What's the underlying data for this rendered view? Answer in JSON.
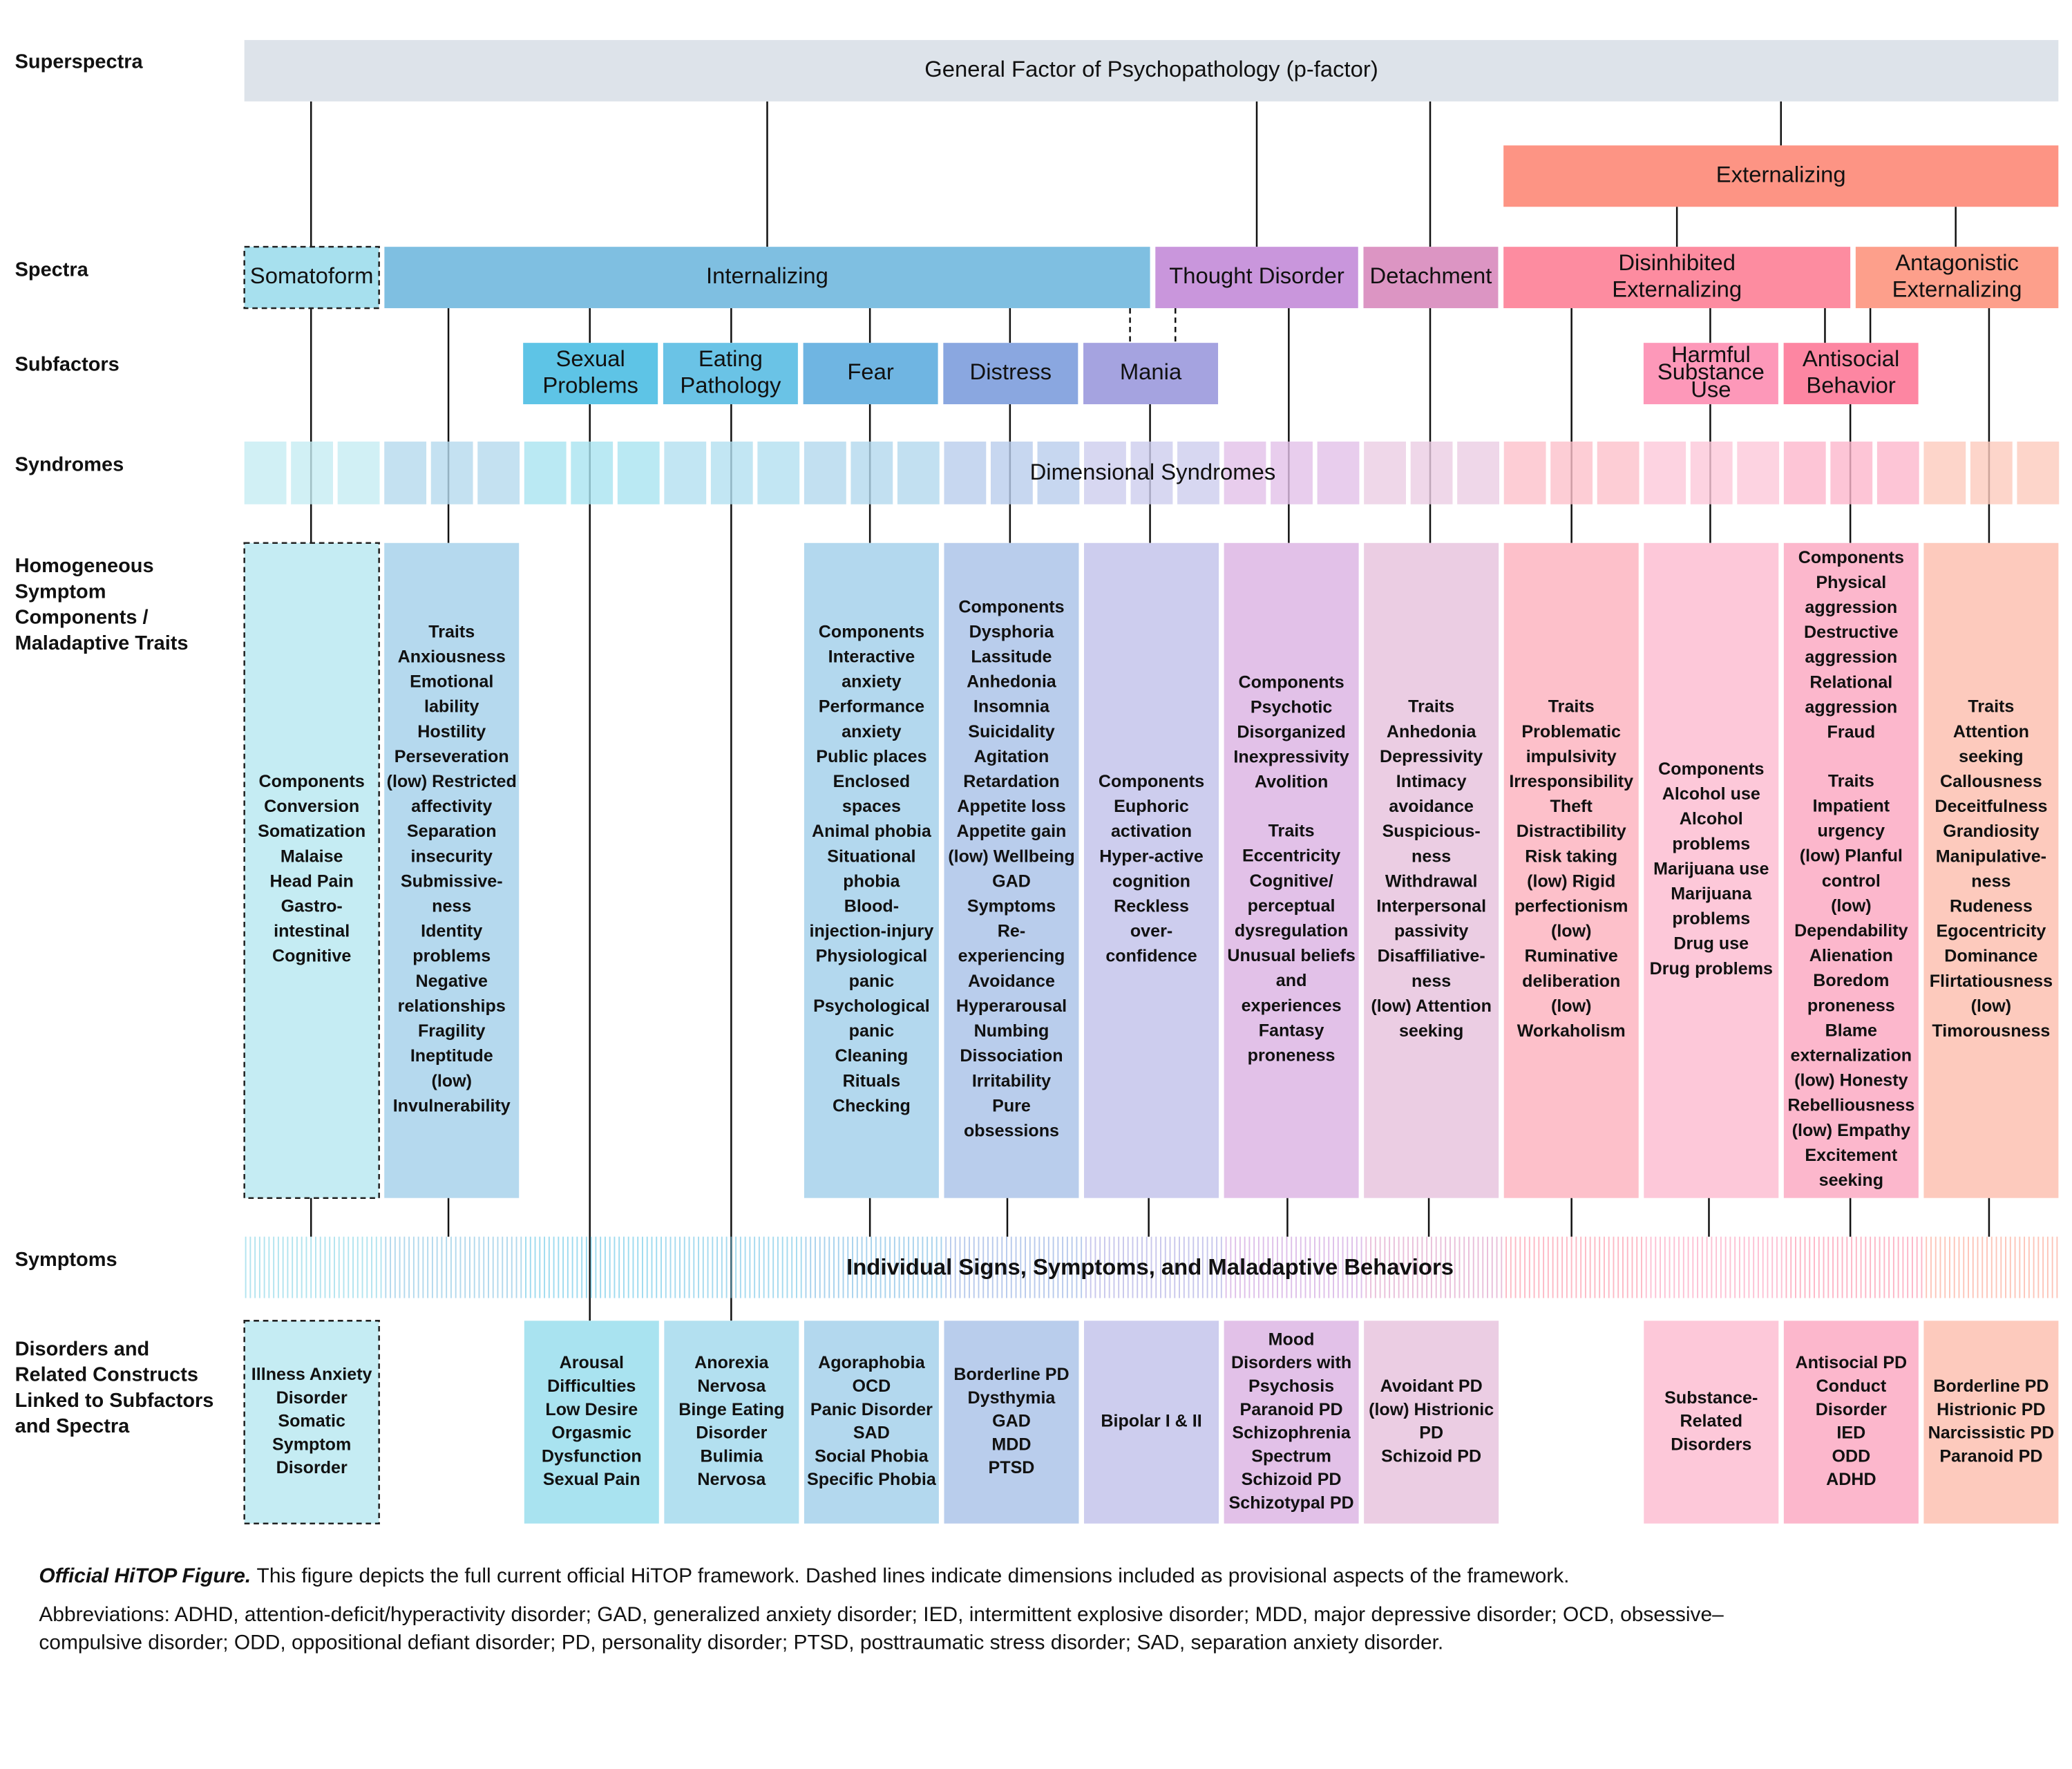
{
  "row_labels": [
    [
      "Superspectra"
    ],
    [
      "Spectra"
    ],
    [
      "Subfactors"
    ],
    [
      "Syndromes"
    ],
    [
      "Homogeneous",
      "Symptom",
      "Components /",
      "Maladaptive Traits"
    ],
    [
      "Symptoms"
    ],
    [
      "Disorders and",
      "Related Constructs",
      "Linked to Subfactors",
      "and Spectra"
    ]
  ],
  "superspectra": [
    {
      "label": [
        "General Factor of Psychopathology (p-factor)"
      ]
    },
    {
      "label": [
        "Externalizing"
      ]
    }
  ],
  "spectra": [
    {
      "label": [
        "Somatoform"
      ]
    },
    {
      "label": [
        "Internalizing"
      ]
    },
    {
      "label": [
        "Thought Disorder"
      ]
    },
    {
      "label": [
        "Detachment"
      ]
    },
    {
      "label": [
        "Disinhibited",
        "Externalizing"
      ]
    },
    {
      "label": [
        "Antagonistic",
        "Externalizing"
      ]
    }
  ],
  "subfactors": [
    {
      "label": [
        "Sexual",
        "Problems"
      ]
    },
    {
      "label": [
        "Eating",
        "Pathology"
      ]
    },
    {
      "label": [
        "Fear"
      ]
    },
    {
      "label": [
        "Distress"
      ]
    },
    {
      "label": [
        "Mania"
      ]
    },
    {
      "label": [
        "Harmful",
        "Substance",
        "Use"
      ]
    },
    {
      "label": [
        "Antisocial",
        "Behavior"
      ]
    }
  ],
  "syndromes": "Dimensional Syndromes",
  "symptoms": "Individual Signs, Symptoms, and Maladaptive Behaviors",
  "components": [
    {
      "sections": [
        {
          "heading": "Components",
          "lines": [
            "Conversion",
            "Somatization",
            "Malaise",
            "Head Pain",
            "Gastro-",
            "intestinal",
            "Cognitive"
          ]
        }
      ]
    },
    {
      "sections": [
        {
          "heading": "Traits",
          "lines": [
            "Anxiousness",
            "Emotional",
            "lability",
            "Hostility",
            "Perseveration",
            "(low) Restricted",
            "affectivity",
            "Separation",
            "insecurity",
            "Submissive-",
            "ness",
            "Identity",
            "problems",
            "Negative",
            "relationships",
            "Fragility",
            "Ineptitude",
            "(low)",
            "Invulnerability"
          ]
        }
      ]
    },
    {
      "sections": [
        {
          "heading": "Components",
          "lines": [
            "Interactive",
            "anxiety",
            "Performance",
            "anxiety",
            "Public places",
            "Enclosed",
            "spaces",
            "Animal phobia",
            "Situational",
            "phobia",
            "Blood-",
            "injection-injury",
            "Physiological",
            "panic",
            "Psychological",
            "panic",
            "Cleaning",
            "Rituals",
            "Checking"
          ]
        }
      ]
    },
    {
      "sections": [
        {
          "heading": "Components",
          "lines": [
            "Dysphoria",
            "Lassitude",
            "Anhedonia",
            "Insomnia",
            "Suicidality",
            "Agitation",
            "Retardation",
            "Appetite loss",
            "Appetite gain",
            "(low) Wellbeing",
            "GAD",
            "Symptoms",
            "Re-",
            "experiencing",
            "Avoidance",
            "Hyperarousal",
            "Numbing",
            "Dissociation",
            "Irritability",
            "Pure",
            "obsessions"
          ]
        }
      ]
    },
    {
      "sections": [
        {
          "heading": "Components",
          "lines": [
            "Euphoric",
            "activation",
            "Hyper-active",
            "cognition",
            "Reckless",
            "over-",
            "confidence"
          ]
        }
      ]
    },
    {
      "sections": [
        {
          "heading": "Components",
          "lines": [
            "Psychotic",
            "Disorganized",
            "Inexpressivity",
            "Avolition"
          ]
        },
        {
          "heading": "Traits",
          "lines": [
            "Eccentricity",
            "Cognitive/",
            "perceptual",
            "dysregulation",
            "Unusual beliefs",
            "and",
            "experiences",
            "Fantasy",
            "proneness"
          ]
        }
      ]
    },
    {
      "sections": [
        {
          "heading": "Traits",
          "lines": [
            "Anhedonia",
            "Depressivity",
            "Intimacy",
            "avoidance",
            "Suspicious-",
            "ness",
            "Withdrawal",
            "Interpersonal",
            "passivity",
            "Disaffiliative-",
            "ness",
            "(low) Attention",
            "seeking"
          ]
        }
      ]
    },
    {
      "sections": [
        {
          "heading": "Traits",
          "lines": [
            "Problematic",
            "impulsivity",
            "Irresponsibility",
            "Theft",
            "Distractibility",
            "Risk taking",
            "(low) Rigid",
            "perfectionism",
            "(low)",
            "Ruminative",
            "deliberation",
            "(low)",
            "Workaholism"
          ]
        }
      ]
    },
    {
      "sections": [
        {
          "heading": "Components",
          "lines": [
            "Alcohol use",
            "Alcohol",
            "problems",
            "Marijuana use",
            "Marijuana",
            "problems",
            "Drug use",
            "Drug problems"
          ]
        }
      ]
    },
    {
      "sections": [
        {
          "heading": "Components",
          "lines": [
            "Physical",
            "aggression",
            "Destructive",
            "aggression",
            "Relational",
            "aggression",
            "Fraud"
          ]
        },
        {
          "heading": "Traits",
          "lines": [
            "Impatient",
            "urgency",
            "(low) Planful",
            "control",
            "(low)",
            "Dependability",
            "Alienation",
            "Boredom",
            "proneness",
            "Blame",
            "externalization",
            "(low) Honesty",
            "Rebelliousness",
            "(low) Empathy",
            "Excitement",
            "seeking"
          ]
        }
      ]
    },
    {
      "sections": [
        {
          "heading": "Traits",
          "lines": [
            "Attention",
            "seeking",
            "Callousness",
            "Deceitfulness",
            "Grandiosity",
            "Manipulative-",
            "ness",
            "Rudeness",
            "Egocentricity",
            "Dominance",
            "Flirtatiousness",
            "(low)",
            "Timorousness"
          ]
        }
      ]
    }
  ],
  "disorders": [
    {
      "lines": [
        "Illness Anxiety",
        "Disorder",
        "Somatic",
        "Symptom",
        "Disorder"
      ]
    },
    {
      "lines": [
        "Arousal",
        "Difficulties",
        "Low Desire",
        "Orgasmic",
        "Dysfunction",
        "Sexual Pain"
      ]
    },
    {
      "lines": [
        "Anorexia",
        "Nervosa",
        "Binge Eating",
        "Disorder",
        "Bulimia",
        "Nervosa"
      ]
    },
    {
      "lines": [
        "Agoraphobia",
        "OCD",
        "Panic Disorder",
        "SAD",
        "Social Phobia",
        "Specific Phobia"
      ]
    },
    {
      "lines": [
        "Borderline PD",
        "Dysthymia",
        "GAD",
        "MDD",
        "PTSD"
      ]
    },
    {
      "lines": [
        "Bipolar I & II"
      ]
    },
    {
      "lines": [
        "Mood",
        "Disorders with",
        "Psychosis",
        "Paranoid PD",
        "Schizophrenia",
        "Spectrum",
        "Schizoid PD",
        "Schizotypal PD"
      ]
    },
    {
      "lines": [
        "Avoidant PD",
        "(low) Histrionic",
        "PD",
        "Schizoid PD"
      ]
    },
    {
      "lines": [
        "Substance-",
        "Related",
        "Disorders"
      ]
    },
    {
      "lines": [
        "Antisocial PD",
        "Conduct",
        "Disorder",
        "IED",
        "ODD",
        "ADHD"
      ]
    },
    {
      "lines": [
        "Borderline PD",
        "Histrionic PD",
        "Narcissistic PD",
        "Paranoid PD"
      ]
    }
  ],
  "caption": {
    "lead": "Official HiTOP Figure.",
    "text": "This figure depicts the full current official HiTOP framework. Dashed lines indicate dimensions included as provisional aspects of the framework."
  },
  "abbreviations": [
    "Abbreviations: ADHD, attention-deficit/hyperactivity disorder; GAD, generalized anxiety disorder; IED, intermittent explosive disorder; MDD, major depressive disorder; OCD, obsessive–",
    "compulsive disorder; ODD, oppositional defiant disorder; PD, personality disorder; PTSD, posttraumatic stress disorder; SAD, separation anxiety disorder."
  ]
}
